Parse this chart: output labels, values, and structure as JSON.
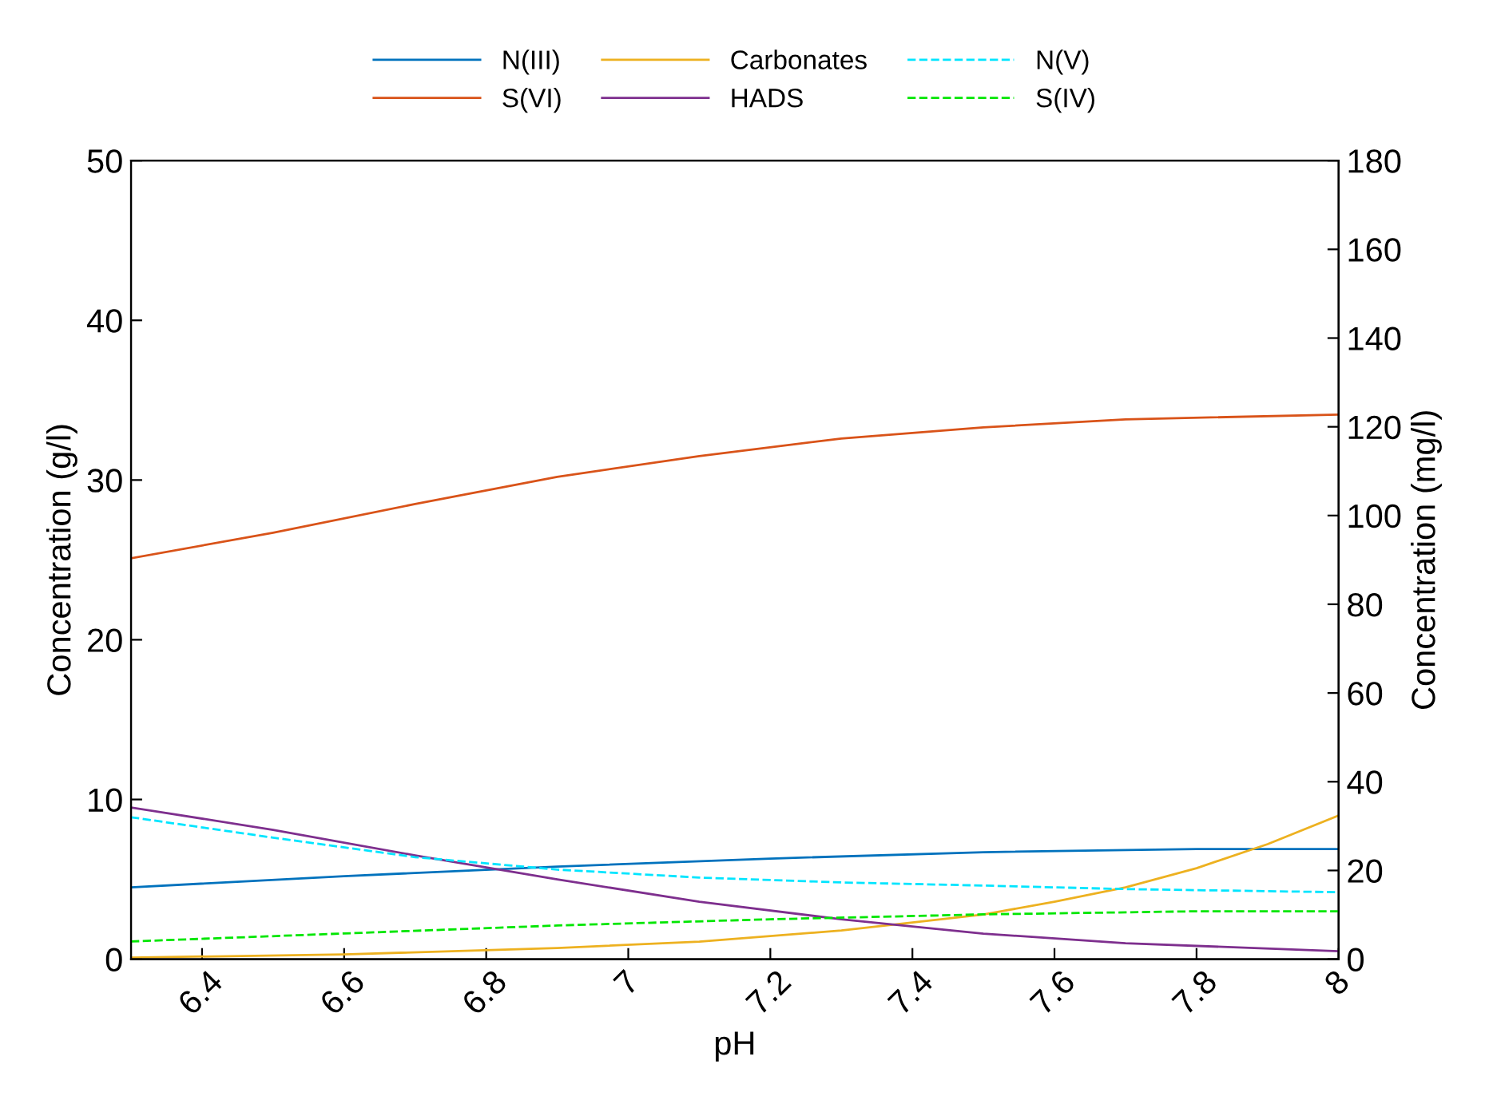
{
  "chart_data": {
    "type": "line",
    "xlabel": "pH",
    "ylabel": "Concentration (g/l)",
    "y2label": "Concentration (mg/l)",
    "xlim": [
      6.3,
      8
    ],
    "xticks": [
      6.4,
      6.6,
      6.8,
      7,
      7.2,
      7.4,
      7.6,
      7.8,
      8
    ],
    "ylim": [
      0,
      50
    ],
    "yticks": [
      0,
      10,
      20,
      30,
      40,
      50
    ],
    "y2lim": [
      0,
      180
    ],
    "y2ticks": [
      0,
      20,
      40,
      60,
      80,
      100,
      120,
      140,
      160,
      180
    ],
    "grid": false,
    "legend": "top",
    "marker": "none",
    "series": [
      {
        "name": "N(III)",
        "color": "#0072bd",
        "x": [
          6.3,
          6.6,
          6.9,
          7.2,
          7.5,
          7.8,
          8
        ],
        "values": [
          4.5,
          5.2,
          5.8,
          6.3,
          6.7,
          6.9,
          6.9
        ]
      },
      {
        "name": "S(VI)",
        "color": "#d95319",
        "x": [
          6.3,
          6.5,
          6.7,
          6.9,
          7.1,
          7.3,
          7.5,
          7.7,
          8
        ],
        "values": [
          25.1,
          26.7,
          28.5,
          30.2,
          31.5,
          32.6,
          33.3,
          33.8,
          34.1
        ]
      },
      {
        "name": "Carbonates",
        "color": "#edb120",
        "x": [
          6.3,
          6.6,
          6.9,
          7.1,
          7.3,
          7.5,
          7.6,
          7.7,
          7.8,
          7.9,
          8
        ],
        "values": [
          0.1,
          0.3,
          0.7,
          1.1,
          1.8,
          2.8,
          3.6,
          4.5,
          5.7,
          7.2,
          9.0
        ]
      },
      {
        "name": "HADS",
        "color": "#7e2f8e",
        "x": [
          6.3,
          6.5,
          6.7,
          6.9,
          7.1,
          7.3,
          7.5,
          7.7,
          8
        ],
        "values": [
          9.5,
          8.1,
          6.5,
          5.0,
          3.6,
          2.5,
          1.6,
          1.0,
          0.5
        ]
      },
      {
        "name": "N(V)",
        "color": "#00e5ff",
        "axis": "y2",
        "line_style": "dashed",
        "x": [
          6.3,
          6.5,
          6.7,
          6.9,
          7.1,
          7.3,
          7.5,
          7.7,
          8
        ],
        "values": [
          32,
          27.4,
          23,
          20.2,
          18.4,
          17.3,
          16.6,
          15.8,
          15.1
        ]
      },
      {
        "name": "S(IV)",
        "color": "#00e600",
        "axis": "y2",
        "line_style": "dashed",
        "x": [
          6.3,
          6.6,
          6.9,
          7.2,
          7.5,
          7.8,
          8
        ],
        "values": [
          4,
          5.8,
          7.6,
          9,
          10.1,
          10.8,
          10.8
        ]
      }
    ]
  }
}
